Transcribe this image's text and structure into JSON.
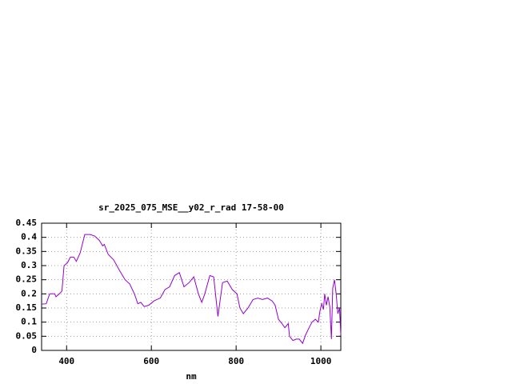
{
  "chart_data": {
    "type": "line",
    "title": "sr_2025_075_MSE__y02_r_rad 17-58-00",
    "xlabel": "nm",
    "xlim": [
      341,
      1047
    ],
    "xticks": [
      400,
      600,
      800,
      1000
    ],
    "ylim": [
      0,
      0.45
    ],
    "yticks": [
      0,
      0.05,
      0.1,
      0.15,
      0.2,
      0.25,
      0.3,
      0.35,
      0.4,
      0.45
    ],
    "grid": true,
    "series": [
      {
        "color": "#9400d3",
        "x": [
          341,
          352,
          360,
          372,
          375,
          383,
          389,
          394,
          402,
          409,
          417,
          423,
          432,
          443,
          455,
          466,
          477,
          485,
          489,
          498,
          511,
          526,
          538,
          549,
          560,
          568,
          575,
          583,
          594,
          606,
          613,
          621,
          632,
          643,
          655,
          666,
          677,
          689,
          700,
          711,
          719,
          726,
          738,
          747,
          757,
          768,
          779,
          791,
          802,
          809,
          817,
          828,
          840,
          851,
          862,
          874,
          885,
          892,
          900,
          908,
          915,
          923,
          926,
          934,
          942,
          949,
          957,
          964,
          972,
          979,
          987,
          994,
          998,
          1002,
          1006,
          1009,
          1013,
          1017,
          1021,
          1025,
          1028,
          1032,
          1036,
          1040,
          1044,
          1047
        ],
        "values": [
          0.164,
          0.165,
          0.2,
          0.2,
          0.19,
          0.2,
          0.21,
          0.3,
          0.31,
          0.33,
          0.33,
          0.315,
          0.345,
          0.41,
          0.41,
          0.405,
          0.39,
          0.37,
          0.375,
          0.34,
          0.32,
          0.28,
          0.25,
          0.235,
          0.2,
          0.165,
          0.17,
          0.155,
          0.16,
          0.175,
          0.18,
          0.185,
          0.215,
          0.225,
          0.265,
          0.275,
          0.225,
          0.24,
          0.26,
          0.2,
          0.17,
          0.2,
          0.265,
          0.26,
          0.12,
          0.24,
          0.245,
          0.215,
          0.2,
          0.15,
          0.13,
          0.15,
          0.18,
          0.185,
          0.18,
          0.185,
          0.175,
          0.16,
          0.11,
          0.095,
          0.08,
          0.095,
          0.05,
          0.035,
          0.04,
          0.04,
          0.025,
          0.055,
          0.08,
          0.1,
          0.11,
          0.1,
          0.14,
          0.165,
          0.145,
          0.2,
          0.16,
          0.19,
          0.155,
          0.04,
          0.22,
          0.25,
          0.2,
          0.13,
          0.15,
          0.055
        ]
      }
    ]
  }
}
